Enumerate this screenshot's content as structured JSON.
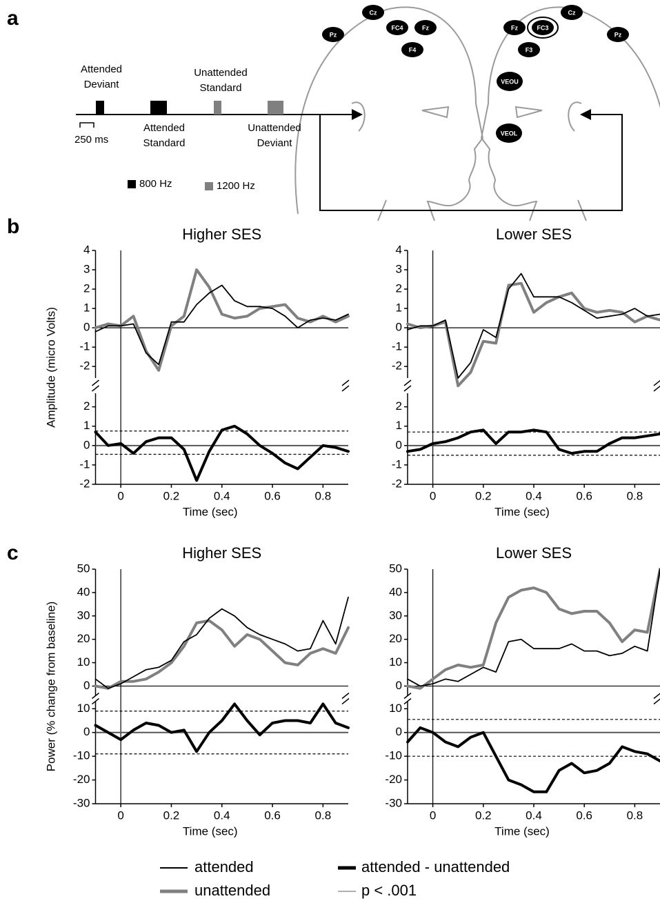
{
  "panel_labels": [
    "a",
    "b",
    "c"
  ],
  "panel_a": {
    "stimuli": [
      {
        "lines": [
          "Attended",
          "Deviant"
        ]
      },
      {
        "lines": [
          "Attended",
          "Standard"
        ]
      },
      {
        "lines": [
          "Unattended",
          "Standard"
        ]
      },
      {
        "lines": [
          "Unattended",
          "Deviant"
        ]
      }
    ],
    "scale_bar": "250 ms",
    "tones": [
      {
        "label": "800 Hz",
        "color": "#000000"
      },
      {
        "label": "1200 Hz",
        "color": "#808080"
      }
    ],
    "electrodes": [
      {
        "label": "Pz"
      },
      {
        "label": "Cz"
      },
      {
        "label": "FC4"
      },
      {
        "label": "Fz"
      },
      {
        "label": "F4"
      },
      {
        "label": "Fz"
      },
      {
        "label": "FC3"
      },
      {
        "label": "Cz"
      },
      {
        "label": "Pz"
      },
      {
        "label": "F3"
      },
      {
        "label": "VEOU"
      },
      {
        "label": "VEOL"
      }
    ]
  },
  "chart_data": [
    {
      "type": "line",
      "title": "Higher SES",
      "ylabel": "Amplitude (micro Volts)",
      "x": [
        -0.1,
        -0.05,
        0,
        0.05,
        0.1,
        0.15,
        0.2,
        0.25,
        0.3,
        0.35,
        0.4,
        0.45,
        0.5,
        0.55,
        0.6,
        0.65,
        0.7,
        0.75,
        0.8,
        0.85,
        0.9
      ],
      "series": [
        {
          "color": "#000000",
          "width": 1.8,
          "values": [
            -0.2,
            0.1,
            0.1,
            0.2,
            -1.3,
            -1.9,
            0.3,
            0.3,
            1.2,
            1.8,
            2.2,
            1.4,
            1.1,
            1.1,
            1.0,
            0.6,
            0.0,
            0.4,
            0.5,
            0.4,
            0.7
          ]
        },
        {
          "color": "#808080",
          "width": 4,
          "values": [
            0.0,
            0.2,
            0.1,
            0.6,
            -1.2,
            -2.2,
            0.1,
            0.6,
            3.0,
            2.1,
            0.7,
            0.5,
            0.6,
            1.0,
            1.1,
            1.2,
            0.5,
            0.3,
            0.6,
            0.3,
            0.6
          ]
        }
      ],
      "xlim": [
        -0.1,
        0.9
      ],
      "ylim": [
        -2.6,
        4
      ],
      "yticks": [
        -2,
        -1,
        0,
        1,
        2,
        3,
        4
      ]
    },
    {
      "type": "line",
      "xlabel": "Time (sec)",
      "x": [
        -0.1,
        -0.05,
        0,
        0.05,
        0.1,
        0.15,
        0.2,
        0.25,
        0.3,
        0.35,
        0.4,
        0.45,
        0.5,
        0.55,
        0.6,
        0.65,
        0.7,
        0.75,
        0.8,
        0.85,
        0.9
      ],
      "series": [
        {
          "color": "#000000",
          "width": 4,
          "values": [
            0.7,
            0.0,
            0.1,
            -0.4,
            0.2,
            0.4,
            0.4,
            -0.2,
            -1.8,
            -0.3,
            0.8,
            1.0,
            0.6,
            0.0,
            -0.4,
            -0.9,
            -1.2,
            -0.6,
            0.0,
            -0.1,
            -0.3
          ]
        }
      ],
      "thresholds": [
        0.75,
        -0.45
      ],
      "xlim": [
        -0.1,
        0.9
      ],
      "ylim": [
        -2,
        2.7
      ],
      "yticks": [
        -2,
        -1,
        0,
        1,
        2
      ],
      "xticks": [
        0,
        0.2,
        0.4,
        0.6,
        0.8
      ]
    },
    {
      "type": "line",
      "title": "Lower SES",
      "x": [
        -0.1,
        -0.05,
        0,
        0.05,
        0.1,
        0.15,
        0.2,
        0.25,
        0.3,
        0.35,
        0.4,
        0.45,
        0.5,
        0.55,
        0.6,
        0.65,
        0.7,
        0.75,
        0.8,
        0.85,
        0.9
      ],
      "series": [
        {
          "color": "#000000",
          "width": 1.8,
          "values": [
            -0.1,
            0.1,
            0.1,
            0.4,
            -2.6,
            -1.8,
            -0.1,
            -0.5,
            2.0,
            2.8,
            1.6,
            1.6,
            1.6,
            1.3,
            0.9,
            0.5,
            0.6,
            0.7,
            1.0,
            0.6,
            0.7
          ]
        },
        {
          "color": "#808080",
          "width": 4,
          "values": [
            0.2,
            0.0,
            0.1,
            0.3,
            -3.0,
            -2.3,
            -0.7,
            -0.8,
            2.2,
            2.3,
            0.8,
            1.3,
            1.6,
            1.8,
            1.0,
            0.8,
            0.9,
            0.8,
            0.3,
            0.6,
            0.4
          ]
        }
      ],
      "xlim": [
        -0.1,
        0.9
      ],
      "ylim": [
        -2.6,
        4
      ],
      "yticks": [
        -2,
        -1,
        0,
        1,
        2,
        3,
        4
      ]
    },
    {
      "type": "line",
      "xlabel": "Time (sec)",
      "x": [
        -0.1,
        -0.05,
        0,
        0.05,
        0.1,
        0.15,
        0.2,
        0.25,
        0.3,
        0.35,
        0.4,
        0.45,
        0.5,
        0.55,
        0.6,
        0.65,
        0.7,
        0.75,
        0.8,
        0.85,
        0.9
      ],
      "series": [
        {
          "color": "#000000",
          "width": 4,
          "values": [
            -0.3,
            -0.2,
            0.1,
            0.2,
            0.4,
            0.7,
            0.8,
            0.1,
            0.7,
            0.7,
            0.8,
            0.7,
            -0.2,
            -0.4,
            -0.3,
            -0.3,
            0.1,
            0.4,
            0.4,
            0.5,
            0.6
          ]
        }
      ],
      "thresholds": [
        0.7,
        -0.5
      ],
      "xlim": [
        -0.1,
        0.9
      ],
      "ylim": [
        -2,
        2.7
      ],
      "yticks": [
        -2,
        -1,
        0,
        1,
        2
      ],
      "xticks": [
        0,
        0.2,
        0.4,
        0.6,
        0.8
      ]
    },
    {
      "type": "line",
      "title": "Higher SES",
      "ylabel": "Power (% change from baseline)",
      "x": [
        -0.1,
        -0.05,
        0,
        0.05,
        0.1,
        0.15,
        0.2,
        0.25,
        0.3,
        0.35,
        0.4,
        0.45,
        0.5,
        0.55,
        0.6,
        0.65,
        0.7,
        0.75,
        0.8,
        0.85,
        0.9
      ],
      "series": [
        {
          "color": "#000000",
          "width": 1.8,
          "values": [
            3,
            -1,
            1,
            4,
            7,
            8,
            11,
            19,
            22,
            29,
            33,
            30,
            25,
            22,
            20,
            18,
            15,
            16,
            28,
            18,
            38
          ]
        },
        {
          "color": "#808080",
          "width": 4,
          "values": [
            0,
            -1,
            2,
            2,
            3,
            6,
            10,
            17,
            27,
            28,
            24,
            17,
            22,
            20,
            15,
            10,
            9,
            14,
            16,
            14,
            25
          ]
        }
      ],
      "xlim": [
        -0.1,
        0.9
      ],
      "ylim": [
        -4,
        50
      ],
      "yticks": [
        0,
        10,
        20,
        30,
        40,
        50
      ]
    },
    {
      "type": "line",
      "xlabel": "Time (sec)",
      "x": [
        -0.1,
        -0.05,
        0,
        0.05,
        0.1,
        0.15,
        0.2,
        0.25,
        0.3,
        0.35,
        0.4,
        0.45,
        0.5,
        0.55,
        0.6,
        0.65,
        0.7,
        0.75,
        0.8,
        0.85,
        0.9
      ],
      "series": [
        {
          "color": "#000000",
          "width": 4,
          "values": [
            3,
            0,
            -3,
            1,
            4,
            3,
            0,
            1,
            -8,
            0,
            5,
            12,
            5,
            -1,
            4,
            5,
            5,
            4,
            12,
            4,
            2
          ]
        }
      ],
      "thresholds": [
        9,
        -9
      ],
      "xlim": [
        -0.1,
        0.9
      ],
      "ylim": [
        -30,
        13
      ],
      "yticks": [
        -30,
        -20,
        -10,
        0,
        10
      ],
      "xticks": [
        0,
        0.2,
        0.4,
        0.6,
        0.8
      ]
    },
    {
      "type": "line",
      "title": "Lower SES",
      "x": [
        -0.1,
        -0.05,
        0,
        0.05,
        0.1,
        0.15,
        0.2,
        0.25,
        0.3,
        0.35,
        0.4,
        0.45,
        0.5,
        0.55,
        0.6,
        0.65,
        0.7,
        0.75,
        0.8,
        0.85,
        0.9
      ],
      "series": [
        {
          "color": "#000000",
          "width": 1.8,
          "values": [
            3,
            0,
            1,
            3,
            2,
            5,
            8,
            6,
            19,
            20,
            16,
            16,
            16,
            18,
            15,
            15,
            13,
            14,
            17,
            15,
            50
          ]
        },
        {
          "color": "#808080",
          "width": 4,
          "values": [
            0,
            -1,
            3,
            7,
            9,
            8,
            9,
            27,
            38,
            41,
            42,
            40,
            33,
            31,
            32,
            32,
            27,
            19,
            24,
            23,
            50
          ]
        }
      ],
      "xlim": [
        -0.1,
        0.9
      ],
      "ylim": [
        -4,
        50
      ],
      "yticks": [
        0,
        10,
        20,
        30,
        40,
        50
      ]
    },
    {
      "type": "line",
      "xlabel": "Time (sec)",
      "x": [
        -0.1,
        -0.05,
        0,
        0.05,
        0.1,
        0.15,
        0.2,
        0.25,
        0.3,
        0.35,
        0.4,
        0.45,
        0.5,
        0.55,
        0.6,
        0.65,
        0.7,
        0.75,
        0.8,
        0.85,
        0.9
      ],
      "series": [
        {
          "color": "#000000",
          "width": 4,
          "values": [
            -4,
            2,
            0,
            -4,
            -6,
            -2,
            0,
            -10,
            -20,
            -22,
            -25,
            -25,
            -16,
            -13,
            -17,
            -16,
            -13,
            -6,
            -8,
            -9,
            -12
          ]
        }
      ],
      "thresholds": [
        5.5,
        -10
      ],
      "xlim": [
        -0.1,
        0.9
      ],
      "ylim": [
        -30,
        13
      ],
      "yticks": [
        -30,
        -20,
        -10,
        0,
        10
      ],
      "xticks": [
        0,
        0.2,
        0.4,
        0.6,
        0.8
      ]
    }
  ],
  "legend": [
    {
      "name": "attended",
      "color": "#000000",
      "width": 2
    },
    {
      "name": "unattended",
      "color": "#808080",
      "width": 5
    },
    {
      "name": "attended - unattended",
      "color": "#000000",
      "width": 5
    },
    {
      "name": "p < .001",
      "color": "#808080",
      "width": 1.2
    }
  ]
}
